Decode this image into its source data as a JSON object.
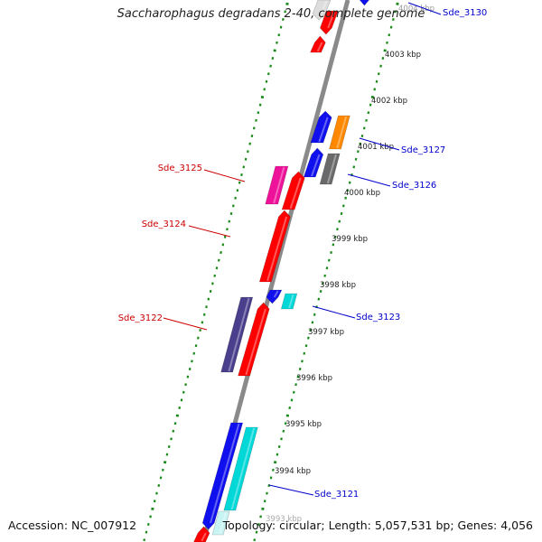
{
  "title": "Saccharophagus degradans 2-40, complete genome",
  "footer": {
    "accession": "Accession: NC_007912",
    "topology": "Topology: circular; Length: 5,057,531 bp; Genes: 4,056"
  },
  "genes": [
    {
      "label": "Sde_3130",
      "color": "#0000cc"
    },
    {
      "label": "Sde_3127",
      "color": "#0000cc"
    },
    {
      "label": "Sde_3126",
      "color": "#0000cc"
    },
    {
      "label": "Sde_3125",
      "color": "#cc0000"
    },
    {
      "label": "Sde_3124",
      "color": "#cc0000"
    },
    {
      "label": "Sde_3123",
      "color": "#0000cc"
    },
    {
      "label": "Sde_3122",
      "color": "#cc0000"
    },
    {
      "label": "Sde_3121",
      "color": "#0000cc"
    }
  ],
  "scale_labels": [
    "4004 kbp",
    "4003 kbp",
    "4002 kbp",
    "4001 kbp",
    "4000 kbp",
    "3999 kbp",
    "3998 kbp",
    "3997 kbp",
    "3996 kbp",
    "3995 kbp",
    "3994 kbp",
    "3993 kbp"
  ],
  "colors": {
    "backbone": "#8a8a8a",
    "tick": "#1a8a1a",
    "red": "#ff0000",
    "blue": "#1010ee",
    "orange": "#ff8800",
    "gray": "#6a6a6a",
    "cyan": "#00d8d8",
    "magenta": "#ee1199",
    "purple": "#4a3f8c"
  }
}
